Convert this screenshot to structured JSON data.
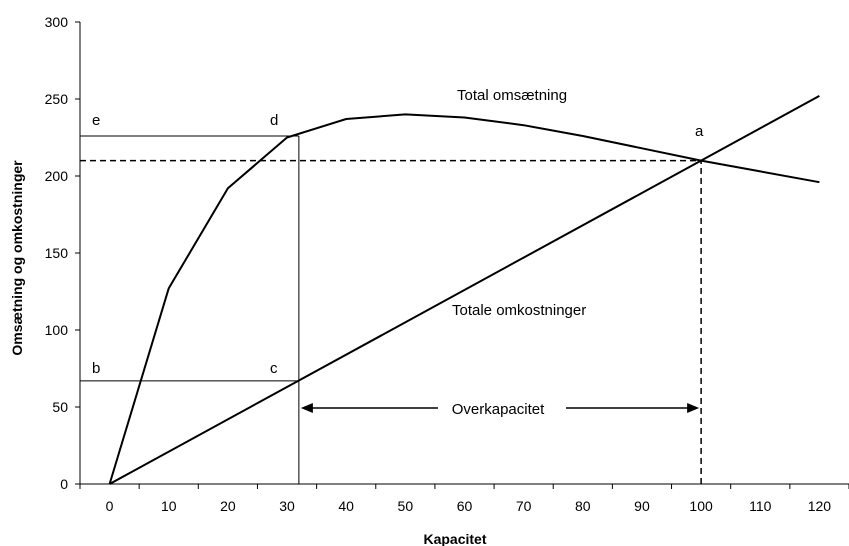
{
  "chart_data": {
    "type": "line",
    "title": "",
    "xlabel": "Kapacitet",
    "ylabel": "Omsætning og omkostninger",
    "xlim": [
      -5,
      125
    ],
    "ylim": [
      0,
      300
    ],
    "x_ticks": [
      0,
      10,
      20,
      30,
      40,
      50,
      60,
      70,
      80,
      90,
      100,
      110,
      120
    ],
    "y_ticks": [
      0,
      50,
      100,
      150,
      200,
      250,
      300
    ],
    "grid": false,
    "legend": "none",
    "series": [
      {
        "name": "Total omsætning",
        "color": "#000000",
        "points": [
          [
            0,
            0
          ],
          [
            10,
            127
          ],
          [
            20,
            192
          ],
          [
            30,
            225
          ],
          [
            40,
            237
          ],
          [
            50,
            240
          ],
          [
            60,
            238
          ],
          [
            70,
            233
          ],
          [
            80,
            226
          ],
          [
            90,
            218
          ],
          [
            100,
            210
          ],
          [
            110,
            203
          ],
          [
            120,
            196
          ]
        ]
      },
      {
        "name": "Totale omkostninger",
        "color": "#000000",
        "points": [
          [
            0,
            0
          ],
          [
            120,
            252
          ]
        ]
      }
    ],
    "annotations": {
      "point_labels": [
        {
          "text": "a",
          "x": 100,
          "y": 210
        },
        {
          "text": "b",
          "x": -2,
          "y": 67
        },
        {
          "text": "c",
          "x": 28,
          "y": 67
        },
        {
          "text": "d",
          "x": 28,
          "y": 226
        },
        {
          "text": "e",
          "x": -2,
          "y": 226
        }
      ],
      "overkapacitet_label": "Overkapacitet",
      "overkapacitet_range": [
        32,
        100
      ]
    },
    "reference_lines": [
      {
        "style": "solid",
        "points": [
          [
            -5,
            67
          ],
          [
            32,
            67
          ]
        ]
      },
      {
        "style": "solid",
        "points": [
          [
            32,
            0
          ],
          [
            32,
            226
          ]
        ]
      },
      {
        "style": "solid",
        "points": [
          [
            -5,
            226
          ],
          [
            32,
            226
          ]
        ]
      },
      {
        "style": "dashed",
        "points": [
          [
            -5,
            210
          ],
          [
            100,
            210
          ]
        ]
      },
      {
        "style": "dashed",
        "points": [
          [
            100,
            0
          ],
          [
            100,
            210
          ]
        ]
      }
    ]
  }
}
